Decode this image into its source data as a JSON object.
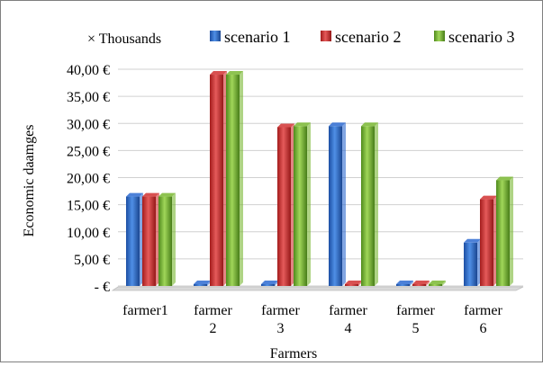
{
  "chart_data": {
    "type": "bar",
    "title": "",
    "xlabel": "Farmers",
    "ylabel": "Economic daamges",
    "unit_note": "× Thousands",
    "categories": [
      [
        "farmer1"
      ],
      [
        "farmer",
        "2"
      ],
      [
        "farmer",
        "3"
      ],
      [
        "farmer",
        "4"
      ],
      [
        "farmer",
        "5"
      ],
      [
        "farmer",
        "6"
      ]
    ],
    "series": [
      {
        "name": "scenario 1",
        "values": [
          16.5,
          0,
          0,
          29.5,
          0,
          8
        ],
        "color": "#2e6bd1"
      },
      {
        "name": "scenario 2",
        "values": [
          16.5,
          39,
          29.3,
          0,
          0,
          16
        ],
        "color": "#d13232"
      },
      {
        "name": "scenario 3",
        "values": [
          16.5,
          39,
          29.5,
          29.5,
          0,
          19.5
        ],
        "color": "#7ab833"
      }
    ],
    "yticks": [
      "-  €",
      "5,00 €",
      "10,00 €",
      "15,00 €",
      "20,00 €",
      "25,00 €",
      "30,00 €",
      "35,00 €",
      "40,00 €"
    ],
    "ylim": [
      0,
      40
    ],
    "grid": true,
    "legend_position": "top"
  }
}
